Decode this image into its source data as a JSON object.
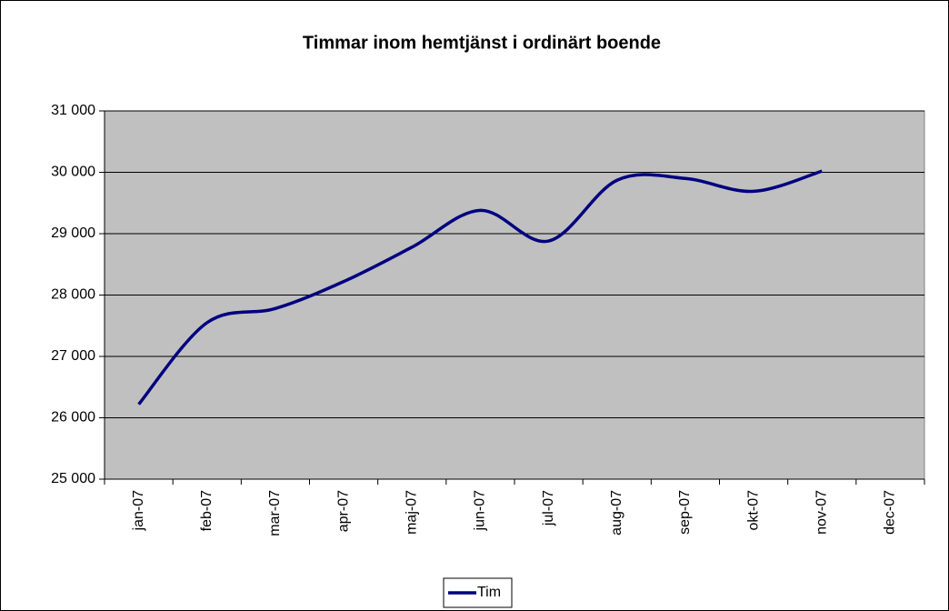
{
  "chart_data": {
    "type": "line",
    "title": "Timmar inom hemtjänst i ordinärt boende",
    "categories": [
      "jan-07",
      "feb-07",
      "mar-07",
      "apr-07",
      "maj-07",
      "jun-07",
      "jul-07",
      "aug-07",
      "sep-07",
      "okt-07",
      "nov-07",
      "dec-07"
    ],
    "series": [
      {
        "name": "Tim",
        "color": "#000080",
        "values": [
          26220,
          27550,
          27780,
          28220,
          28780,
          29380,
          28880,
          29870,
          29900,
          29690,
          30020,
          null
        ]
      }
    ],
    "ylim": [
      25000,
      31000
    ],
    "yticks": [
      {
        "value": 25000,
        "label": "25 000"
      },
      {
        "value": 26000,
        "label": "26 000"
      },
      {
        "value": 27000,
        "label": "27 000"
      },
      {
        "value": 28000,
        "label": "28 000"
      },
      {
        "value": 29000,
        "label": "29 000"
      },
      {
        "value": 30000,
        "label": "30 000"
      },
      {
        "value": 31000,
        "label": "31 000"
      }
    ],
    "grid": true,
    "plot_background": "#c0c0c0",
    "legend": "bottom"
  }
}
